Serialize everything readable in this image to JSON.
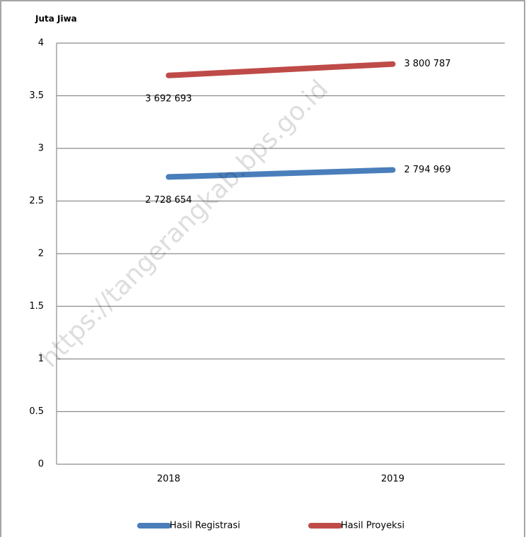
{
  "chart_data": {
    "type": "line",
    "y_label": "Juta Jiwa",
    "categories": [
      "2018",
      "2019"
    ],
    "series": [
      {
        "name": "Hasil Registrasi",
        "color": "#4a7ebb",
        "values": [
          2.728654,
          2.794969
        ],
        "value_labels": [
          "2 728 654",
          "2 794 969"
        ]
      },
      {
        "name": "Hasil Proyeksi",
        "color": "#be4b48",
        "values": [
          3.692693,
          3.800787
        ],
        "value_labels": [
          "3 692 693",
          "3 800 787"
        ]
      }
    ],
    "ylim": [
      0,
      4
    ],
    "yticks": [
      0,
      0.5,
      1,
      1.5,
      2,
      2.5,
      3,
      3.5,
      4
    ],
    "grid": true,
    "legend": "bottom",
    "watermark": "https://tangerangkab.bps.go.id"
  }
}
